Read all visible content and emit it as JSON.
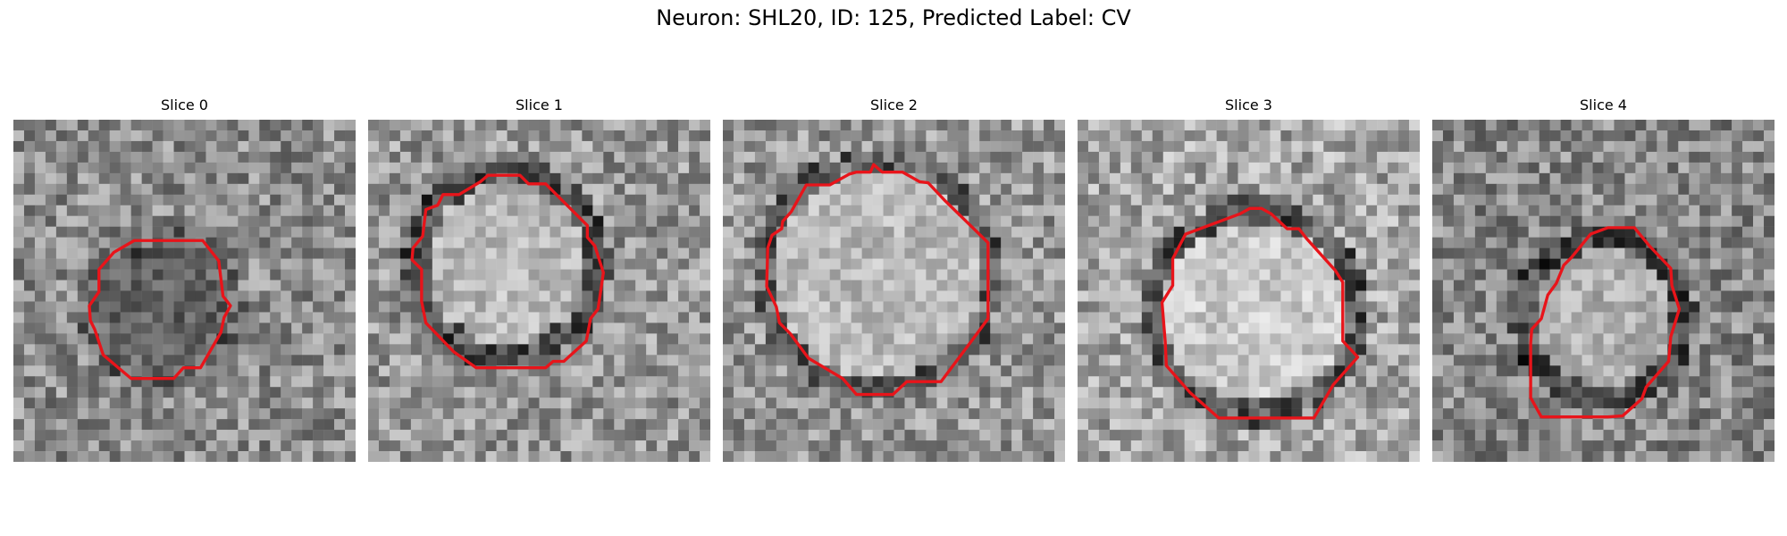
{
  "figure": {
    "title": "Neuron: SHL20, ID: 125, Predicted Label: CV"
  },
  "colors": {
    "contour": "#e8141a",
    "background": "#ffffff"
  },
  "panels": [
    {
      "title": "Slice 0"
    },
    {
      "title": "Slice 1"
    },
    {
      "title": "Slice 2"
    },
    {
      "title": "Slice 3"
    },
    {
      "title": "Slice 4"
    }
  ]
}
